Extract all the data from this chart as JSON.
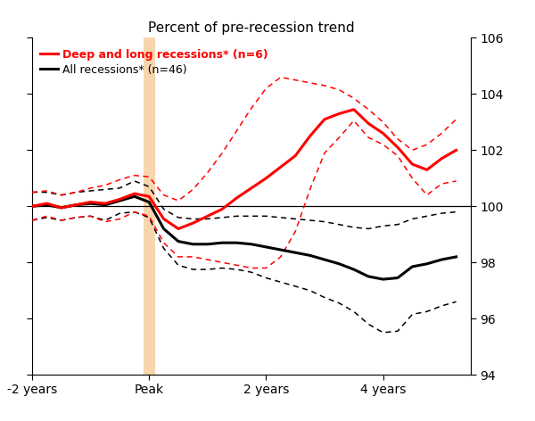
{
  "title": "Percent of pre-recession trend",
  "xlim": [
    -8,
    22
  ],
  "ylim": [
    94,
    106
  ],
  "yticks": [
    94,
    96,
    98,
    100,
    102,
    104,
    106
  ],
  "xtick_positions": [
    -8,
    0,
    8,
    16
  ],
  "xtick_labels": [
    "-2 years",
    "Peak",
    "2 years",
    "4 years"
  ],
  "peak_x": 0,
  "baseline_y": 100,
  "legend_deep": "Deep and long recessions* (n=6)",
  "legend_all": "All recessions* (n=46)",
  "shading_color": "#f5c58a",
  "shading_alpha": 0.7,
  "x": [
    -8,
    -7,
    -6,
    -5,
    -4,
    -3,
    -2,
    -1,
    0,
    1,
    2,
    3,
    4,
    5,
    6,
    7,
    8,
    9,
    10,
    11,
    12,
    13,
    14,
    15,
    16,
    17,
    18,
    19,
    20,
    21
  ],
  "deep_mean": [
    100.0,
    100.1,
    99.95,
    100.05,
    100.15,
    100.1,
    100.25,
    100.45,
    100.35,
    99.55,
    99.2,
    99.4,
    99.65,
    99.9,
    100.3,
    100.65,
    101.0,
    101.4,
    101.8,
    102.5,
    103.1,
    103.3,
    103.45,
    102.95,
    102.6,
    102.1,
    101.5,
    101.3,
    101.7,
    102.0
  ],
  "deep_upper": [
    100.5,
    100.55,
    100.4,
    100.5,
    100.65,
    100.75,
    100.95,
    101.1,
    101.05,
    100.4,
    100.2,
    100.6,
    101.2,
    101.9,
    102.7,
    103.5,
    104.2,
    104.6,
    104.5,
    104.4,
    104.3,
    104.15,
    103.85,
    103.45,
    103.0,
    102.4,
    102.0,
    102.2,
    102.6,
    103.1
  ],
  "deep_lower": [
    99.5,
    99.65,
    99.5,
    99.6,
    99.65,
    99.45,
    99.55,
    99.8,
    99.65,
    98.7,
    98.2,
    98.2,
    98.1,
    98.0,
    97.9,
    97.8,
    97.8,
    98.2,
    99.1,
    100.6,
    101.9,
    102.45,
    103.05,
    102.45,
    102.2,
    101.8,
    101.0,
    100.4,
    100.8,
    100.9
  ],
  "all_mean": [
    100.0,
    100.05,
    99.95,
    100.05,
    100.1,
    100.05,
    100.2,
    100.35,
    100.15,
    99.2,
    98.75,
    98.65,
    98.65,
    98.7,
    98.7,
    98.65,
    98.55,
    98.45,
    98.35,
    98.25,
    98.1,
    97.95,
    97.75,
    97.5,
    97.4,
    97.45,
    97.85,
    97.95,
    98.1,
    98.2
  ],
  "all_upper": [
    100.5,
    100.5,
    100.4,
    100.5,
    100.55,
    100.6,
    100.65,
    100.9,
    100.7,
    99.9,
    99.6,
    99.55,
    99.55,
    99.6,
    99.65,
    99.65,
    99.65,
    99.6,
    99.55,
    99.5,
    99.45,
    99.35,
    99.25,
    99.2,
    99.3,
    99.35,
    99.55,
    99.65,
    99.75,
    99.8
  ],
  "all_lower": [
    99.5,
    99.6,
    99.5,
    99.6,
    99.65,
    99.5,
    99.75,
    99.8,
    99.6,
    98.5,
    97.9,
    97.75,
    97.75,
    97.8,
    97.75,
    97.65,
    97.45,
    97.3,
    97.15,
    97.0,
    96.75,
    96.55,
    96.25,
    95.8,
    95.5,
    95.55,
    96.15,
    96.25,
    96.45,
    96.6
  ]
}
